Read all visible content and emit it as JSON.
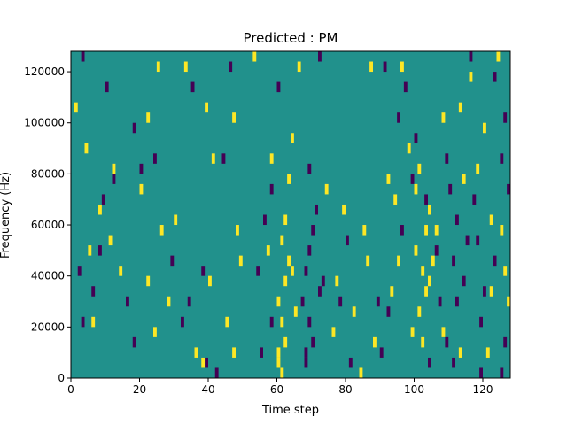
{
  "chart_data": {
    "type": "heatmap",
    "title": "Predicted : PM",
    "xlabel": "Time step",
    "ylabel": "Frequency (Hz)",
    "xlim": [
      0,
      128
    ],
    "ylim": [
      0,
      128000
    ],
    "x_ticks": [
      0,
      20,
      40,
      60,
      80,
      100,
      120
    ],
    "x_tick_labels": [
      "0",
      "20",
      "40",
      "60",
      "80",
      "100",
      "120"
    ],
    "y_ticks": [
      0,
      20000,
      40000,
      60000,
      80000,
      100000,
      120000
    ],
    "y_tick_labels": [
      "0",
      "20000",
      "40000",
      "60000",
      "80000",
      "100000",
      "120000"
    ],
    "colors": {
      "low": "#440154",
      "mid": "#21918c",
      "high": "#fde725"
    },
    "grid": false,
    "bin_width_hz": 4000,
    "cells": [
      {
        "t": 60,
        "f": 8000,
        "v": "high"
      },
      {
        "t": 60,
        "f": 4000,
        "v": "high"
      },
      {
        "t": 61,
        "f": 0,
        "v": "high"
      },
      {
        "t": 62,
        "f": 12000,
        "v": "high"
      },
      {
        "t": 61,
        "f": 20000,
        "v": "high"
      },
      {
        "t": 60,
        "f": 28000,
        "v": "high"
      },
      {
        "t": 62,
        "f": 36000,
        "v": "high"
      },
      {
        "t": 63,
        "f": 44000,
        "v": "high"
      },
      {
        "t": 61,
        "f": 52000,
        "v": "high"
      },
      {
        "t": 62,
        "f": 60000,
        "v": "high"
      },
      {
        "t": 63,
        "f": 76000,
        "v": "high"
      },
      {
        "t": 64,
        "f": 40000,
        "v": "high"
      },
      {
        "t": 65,
        "f": 24000,
        "v": "high"
      },
      {
        "t": 57,
        "f": 48000,
        "v": "high"
      },
      {
        "t": 58,
        "f": 84000,
        "v": "high"
      },
      {
        "t": 64,
        "f": 92000,
        "v": "high"
      },
      {
        "t": 70,
        "f": 12000,
        "v": "low"
      },
      {
        "t": 68,
        "f": 8000,
        "v": "low"
      },
      {
        "t": 69,
        "f": 20000,
        "v": "low"
      },
      {
        "t": 67,
        "f": 28000,
        "v": "low"
      },
      {
        "t": 68,
        "f": 40000,
        "v": "low"
      },
      {
        "t": 69,
        "f": 48000,
        "v": "low"
      },
      {
        "t": 70,
        "f": 56000,
        "v": "low"
      },
      {
        "t": 71,
        "f": 64000,
        "v": "low"
      },
      {
        "t": 69,
        "f": 80000,
        "v": "low"
      },
      {
        "t": 72,
        "f": 32000,
        "v": "low"
      },
      {
        "t": 68,
        "f": 4000,
        "v": "low"
      },
      {
        "t": 73,
        "f": 36000,
        "v": "low"
      },
      {
        "t": 101,
        "f": 24000,
        "v": "high"
      },
      {
        "t": 102,
        "f": 40000,
        "v": "high"
      },
      {
        "t": 100,
        "f": 48000,
        "v": "high"
      },
      {
        "t": 103,
        "f": 56000,
        "v": "high"
      },
      {
        "t": 104,
        "f": 64000,
        "v": "high"
      },
      {
        "t": 100,
        "f": 72000,
        "v": "high"
      },
      {
        "t": 101,
        "f": 80000,
        "v": "high"
      },
      {
        "t": 99,
        "f": 16000,
        "v": "high"
      },
      {
        "t": 103,
        "f": 32000,
        "v": "high"
      },
      {
        "t": 105,
        "f": 44000,
        "v": "high"
      },
      {
        "t": 98,
        "f": 88000,
        "v": "high"
      },
      {
        "t": 102,
        "f": 12000,
        "v": "high"
      },
      {
        "t": 100,
        "f": 92000,
        "v": "low"
      },
      {
        "t": 99,
        "f": 76000,
        "v": "low"
      },
      {
        "t": 103,
        "f": 68000,
        "v": "low"
      },
      {
        "t": 106,
        "f": 48000,
        "v": "low"
      },
      {
        "t": 107,
        "f": 28000,
        "v": "low"
      },
      {
        "t": 104,
        "f": 4000,
        "v": "low"
      },
      {
        "t": 112,
        "f": 60000,
        "v": "low"
      },
      {
        "t": 114,
        "f": 36000,
        "v": "low"
      },
      {
        "t": 116,
        "f": 116000,
        "v": "high"
      },
      {
        "t": 113,
        "f": 104000,
        "v": "high"
      },
      {
        "t": 120,
        "f": 96000,
        "v": "high"
      },
      {
        "t": 118,
        "f": 80000,
        "v": "high"
      },
      {
        "t": 124,
        "f": 124000,
        "v": "high"
      },
      {
        "t": 122,
        "f": 60000,
        "v": "high"
      },
      {
        "t": 121,
        "f": 8000,
        "v": "high"
      },
      {
        "t": 126,
        "f": 40000,
        "v": "high"
      },
      {
        "t": 125,
        "f": 56000,
        "v": "high"
      },
      {
        "t": 127,
        "f": 28000,
        "v": "high"
      },
      {
        "t": 126,
        "f": 12000,
        "v": "low"
      },
      {
        "t": 125,
        "f": 0,
        "v": "low"
      },
      {
        "t": 127,
        "f": 72000,
        "v": "low"
      },
      {
        "t": 125,
        "f": 84000,
        "v": "low"
      },
      {
        "t": 126,
        "f": 100000,
        "v": "low"
      },
      {
        "t": 123,
        "f": 116000,
        "v": "low"
      },
      {
        "t": 116,
        "f": 124000,
        "v": "low"
      },
      {
        "t": 120,
        "f": 32000,
        "v": "low"
      },
      {
        "t": 119,
        "f": 20000,
        "v": "low"
      },
      {
        "t": 118,
        "f": 52000,
        "v": "low"
      },
      {
        "t": 2,
        "f": 40000,
        "v": "low"
      },
      {
        "t": 3,
        "f": 20000,
        "v": "low"
      },
      {
        "t": 6,
        "f": 32000,
        "v": "low"
      },
      {
        "t": 8,
        "f": 48000,
        "v": "low"
      },
      {
        "t": 9,
        "f": 68000,
        "v": "low"
      },
      {
        "t": 12,
        "f": 76000,
        "v": "low"
      },
      {
        "t": 10,
        "f": 112000,
        "v": "low"
      },
      {
        "t": 3,
        "f": 124000,
        "v": "low"
      },
      {
        "t": 1,
        "f": 104000,
        "v": "high"
      },
      {
        "t": 4,
        "f": 88000,
        "v": "high"
      },
      {
        "t": 6,
        "f": 20000,
        "v": "high"
      },
      {
        "t": 5,
        "f": 48000,
        "v": "high"
      },
      {
        "t": 8,
        "f": 64000,
        "v": "high"
      },
      {
        "t": 12,
        "f": 80000,
        "v": "high"
      },
      {
        "t": 11,
        "f": 52000,
        "v": "high"
      },
      {
        "t": 14,
        "f": 40000,
        "v": "high"
      },
      {
        "t": 18,
        "f": 96000,
        "v": "low"
      },
      {
        "t": 20,
        "f": 80000,
        "v": "low"
      },
      {
        "t": 16,
        "f": 28000,
        "v": "low"
      },
      {
        "t": 18,
        "f": 12000,
        "v": "low"
      },
      {
        "t": 22,
        "f": 36000,
        "v": "high"
      },
      {
        "t": 24,
        "f": 16000,
        "v": "high"
      },
      {
        "t": 20,
        "f": 72000,
        "v": "high"
      },
      {
        "t": 22,
        "f": 100000,
        "v": "high"
      },
      {
        "t": 25,
        "f": 120000,
        "v": "high"
      },
      {
        "t": 28,
        "f": 28000,
        "v": "high"
      },
      {
        "t": 26,
        "f": 56000,
        "v": "high"
      },
      {
        "t": 30,
        "f": 60000,
        "v": "high"
      },
      {
        "t": 32,
        "f": 20000,
        "v": "low"
      },
      {
        "t": 29,
        "f": 44000,
        "v": "low"
      },
      {
        "t": 24,
        "f": 84000,
        "v": "low"
      },
      {
        "t": 35,
        "f": 112000,
        "v": "low"
      },
      {
        "t": 36,
        "f": 8000,
        "v": "high"
      },
      {
        "t": 38,
        "f": 4000,
        "v": "high"
      },
      {
        "t": 40,
        "f": 36000,
        "v": "high"
      },
      {
        "t": 41,
        "f": 84000,
        "v": "high"
      },
      {
        "t": 39,
        "f": 104000,
        "v": "high"
      },
      {
        "t": 33,
        "f": 120000,
        "v": "high"
      },
      {
        "t": 34,
        "f": 28000,
        "v": "low"
      },
      {
        "t": 38,
        "f": 40000,
        "v": "low"
      },
      {
        "t": 39,
        "f": 4000,
        "v": "low"
      },
      {
        "t": 42,
        "f": 0,
        "v": "low"
      },
      {
        "t": 44,
        "f": 84000,
        "v": "low"
      },
      {
        "t": 46,
        "f": 120000,
        "v": "low"
      },
      {
        "t": 47,
        "f": 8000,
        "v": "high"
      },
      {
        "t": 45,
        "f": 20000,
        "v": "high"
      },
      {
        "t": 48,
        "f": 56000,
        "v": "high"
      },
      {
        "t": 47,
        "f": 100000,
        "v": "high"
      },
      {
        "t": 49,
        "f": 44000,
        "v": "high"
      },
      {
        "t": 53,
        "f": 124000,
        "v": "high"
      },
      {
        "t": 55,
        "f": 8000,
        "v": "low"
      },
      {
        "t": 58,
        "f": 20000,
        "v": "low"
      },
      {
        "t": 54,
        "f": 40000,
        "v": "low"
      },
      {
        "t": 56,
        "f": 60000,
        "v": "low"
      },
      {
        "t": 58,
        "f": 72000,
        "v": "low"
      },
      {
        "t": 60,
        "f": 112000,
        "v": "low"
      },
      {
        "t": 66,
        "f": 120000,
        "v": "high"
      },
      {
        "t": 72,
        "f": 124000,
        "v": "low"
      },
      {
        "t": 76,
        "f": 16000,
        "v": "high"
      },
      {
        "t": 77,
        "f": 36000,
        "v": "high"
      },
      {
        "t": 74,
        "f": 72000,
        "v": "high"
      },
      {
        "t": 79,
        "f": 64000,
        "v": "high"
      },
      {
        "t": 78,
        "f": 28000,
        "v": "low"
      },
      {
        "t": 81,
        "f": 4000,
        "v": "low"
      },
      {
        "t": 80,
        "f": 52000,
        "v": "low"
      },
      {
        "t": 84,
        "f": 0,
        "v": "high"
      },
      {
        "t": 82,
        "f": 24000,
        "v": "high"
      },
      {
        "t": 85,
        "f": 56000,
        "v": "high"
      },
      {
        "t": 86,
        "f": 44000,
        "v": "high"
      },
      {
        "t": 88,
        "f": 12000,
        "v": "high"
      },
      {
        "t": 87,
        "f": 120000,
        "v": "high"
      },
      {
        "t": 89,
        "f": 28000,
        "v": "low"
      },
      {
        "t": 90,
        "f": 8000,
        "v": "low"
      },
      {
        "t": 92,
        "f": 24000,
        "v": "low"
      },
      {
        "t": 91,
        "f": 120000,
        "v": "low"
      },
      {
        "t": 93,
        "f": 32000,
        "v": "high"
      },
      {
        "t": 92,
        "f": 76000,
        "v": "high"
      },
      {
        "t": 94,
        "f": 68000,
        "v": "high"
      },
      {
        "t": 95,
        "f": 44000,
        "v": "high"
      },
      {
        "t": 96,
        "f": 120000,
        "v": "high"
      },
      {
        "t": 97,
        "f": 112000,
        "v": "low"
      },
      {
        "t": 96,
        "f": 56000,
        "v": "low"
      },
      {
        "t": 95,
        "f": 100000,
        "v": "low"
      },
      {
        "t": 104,
        "f": 36000,
        "v": "high"
      },
      {
        "t": 108,
        "f": 16000,
        "v": "high"
      },
      {
        "t": 106,
        "f": 56000,
        "v": "high"
      },
      {
        "t": 108,
        "f": 100000,
        "v": "high"
      },
      {
        "t": 109,
        "f": 84000,
        "v": "low"
      },
      {
        "t": 110,
        "f": 72000,
        "v": "low"
      },
      {
        "t": 111,
        "f": 44000,
        "v": "low"
      },
      {
        "t": 112,
        "f": 28000,
        "v": "low"
      },
      {
        "t": 109,
        "f": 12000,
        "v": "low"
      },
      {
        "t": 113,
        "f": 8000,
        "v": "high"
      },
      {
        "t": 111,
        "f": 4000,
        "v": "low"
      },
      {
        "t": 114,
        "f": 76000,
        "v": "high"
      },
      {
        "t": 115,
        "f": 52000,
        "v": "low"
      },
      {
        "t": 117,
        "f": 68000,
        "v": "low"
      },
      {
        "t": 123,
        "f": 44000,
        "v": "low"
      },
      {
        "t": 119,
        "f": 0,
        "v": "low"
      },
      {
        "t": 122,
        "f": 32000,
        "v": "high"
      }
    ]
  }
}
